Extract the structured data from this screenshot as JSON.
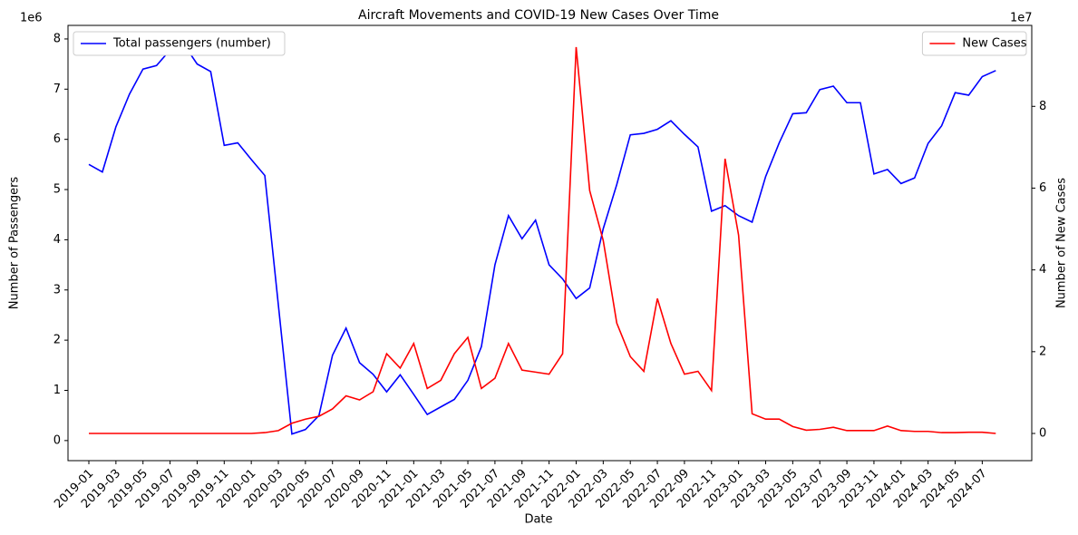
{
  "chart_data": {
    "type": "line",
    "title": "Aircraft Movements and COVID-19 New Cases Over Time",
    "xlabel": "Date",
    "ylabel": "Number of Passengers",
    "y2label": "Number of New Cases",
    "y_offset_label": "1e6",
    "y2_offset_label": "1e7",
    "x": [
      "2019-01",
      "2019-02",
      "2019-03",
      "2019-04",
      "2019-05",
      "2019-06",
      "2019-07",
      "2019-08",
      "2019-09",
      "2019-10",
      "2019-11",
      "2019-12",
      "2020-01",
      "2020-02",
      "2020-03",
      "2020-04",
      "2020-05",
      "2020-06",
      "2020-07",
      "2020-08",
      "2020-09",
      "2020-10",
      "2020-11",
      "2020-12",
      "2021-01",
      "2021-02",
      "2021-03",
      "2021-04",
      "2021-05",
      "2021-06",
      "2021-07",
      "2021-08",
      "2021-09",
      "2021-10",
      "2021-11",
      "2021-12",
      "2022-01",
      "2022-02",
      "2022-03",
      "2022-04",
      "2022-05",
      "2022-06",
      "2022-07",
      "2022-08",
      "2022-09",
      "2022-10",
      "2022-11",
      "2022-12",
      "2023-01",
      "2023-02",
      "2023-03",
      "2023-04",
      "2023-05",
      "2023-06",
      "2023-07",
      "2023-08",
      "2023-09",
      "2023-10",
      "2023-11",
      "2023-12",
      "2024-01",
      "2024-02",
      "2024-03",
      "2024-04",
      "2024-05",
      "2024-06",
      "2024-07",
      "2024-08"
    ],
    "xticks": [
      "2019-01",
      "2019-03",
      "2019-05",
      "2019-07",
      "2019-09",
      "2019-11",
      "2020-01",
      "2020-03",
      "2020-05",
      "2020-07",
      "2020-09",
      "2020-11",
      "2021-01",
      "2021-03",
      "2021-05",
      "2021-07",
      "2021-09",
      "2021-11",
      "2022-01",
      "2022-03",
      "2022-05",
      "2022-07",
      "2022-09",
      "2022-11",
      "2023-01",
      "2023-03",
      "2023-05",
      "2023-07",
      "2023-09",
      "2023-11",
      "2024-01",
      "2024-03",
      "2024-05",
      "2024-07"
    ],
    "ylim": [
      -0.4,
      8.27
    ],
    "yticks": [
      0,
      1,
      2,
      3,
      4,
      5,
      6,
      7,
      8
    ],
    "y2lim": [
      -0.665,
      9.98
    ],
    "y2ticks": [
      0,
      2,
      4,
      6,
      8
    ],
    "grid": false,
    "legend_loc": {
      "y": "upper left",
      "y2": "upper right"
    },
    "series": [
      {
        "name": "Total passengers (number)",
        "color": "#0000ff",
        "axis": "y",
        "values": [
          5.5,
          5.35,
          6.25,
          6.9,
          7.4,
          7.47,
          7.78,
          7.9,
          7.5,
          7.35,
          5.88,
          5.93,
          5.6,
          5.28,
          2.7,
          0.13,
          0.22,
          0.5,
          1.7,
          2.24,
          1.55,
          1.32,
          0.97,
          1.31,
          0.92,
          0.52,
          0.67,
          0.82,
          1.2,
          1.87,
          3.5,
          4.48,
          4.02,
          4.39,
          3.5,
          3.22,
          2.83,
          3.04,
          4.22,
          5.1,
          6.09,
          6.12,
          6.2,
          6.37,
          6.1,
          5.85,
          4.57,
          4.68,
          4.48,
          4.35,
          5.26,
          5.93,
          6.51,
          6.53,
          6.99,
          7.06,
          6.73,
          6.73,
          5.31,
          5.4,
          5.12,
          5.23,
          5.92,
          6.27,
          6.93,
          6.88,
          7.25,
          7.37
        ]
      },
      {
        "name": "New Cases",
        "color": "#ff0000",
        "axis": "y2",
        "values": [
          0,
          0,
          0,
          0,
          0,
          0,
          0,
          0,
          0,
          0,
          0,
          0,
          0,
          0.02,
          0.07,
          0.25,
          0.35,
          0.42,
          0.6,
          0.92,
          0.82,
          1.02,
          1.95,
          1.6,
          2.2,
          1.1,
          1.3,
          1.95,
          2.35,
          1.1,
          1.35,
          2.2,
          1.55,
          1.5,
          1.45,
          1.95,
          9.45,
          5.94,
          4.72,
          2.7,
          1.88,
          1.52,
          3.3,
          2.2,
          1.45,
          1.52,
          1.05,
          6.72,
          4.85,
          0.48,
          0.35,
          0.35,
          0.17,
          0.08,
          0.1,
          0.15,
          0.07,
          0.07,
          0.07,
          0.18,
          0.07,
          0.05,
          0.05,
          0.02,
          0.02,
          0.03,
          0.03,
          0
        ]
      }
    ]
  }
}
